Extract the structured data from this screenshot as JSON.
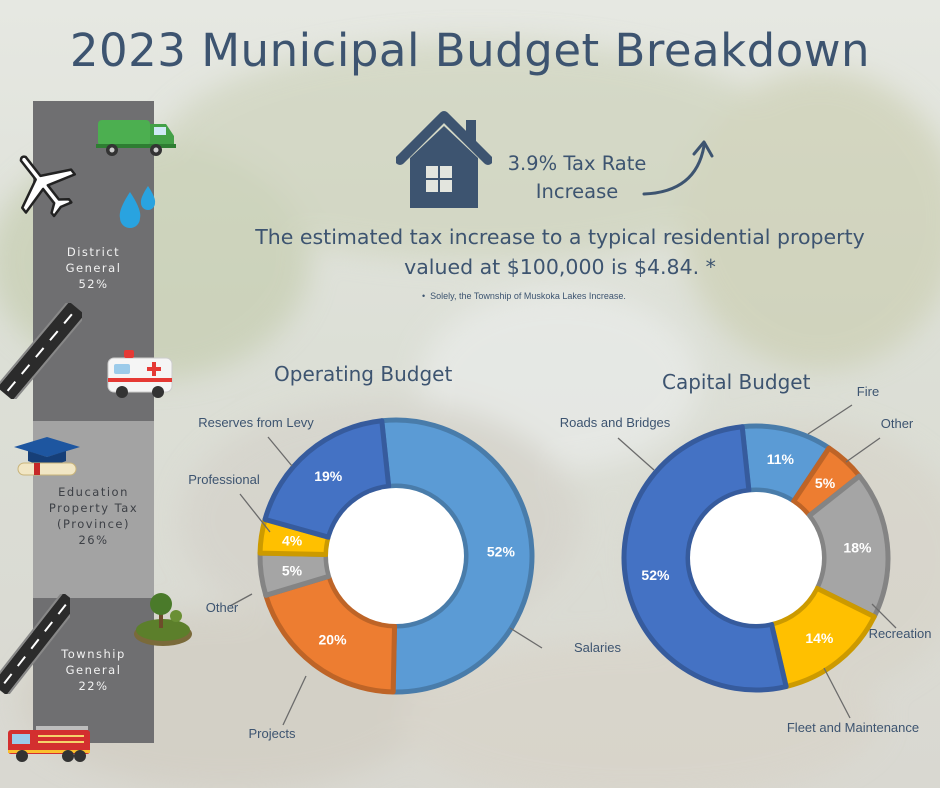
{
  "title": "2023 Municipal Budget Breakdown",
  "stacked_bar": [
    {
      "label": "District General",
      "percent": "52%"
    },
    {
      "label": "Education Property Tax (Province)",
      "percent": "26%"
    },
    {
      "label": "Township General",
      "percent": "22%"
    }
  ],
  "tax": {
    "line1": "3.9% Tax Rate",
    "line2": "Increase",
    "estimate": "The estimated tax increase to a typical residential property valued at $100,000 is $4.84. *",
    "footnote": "Solely, the Township of Muskoka Lakes Increase."
  },
  "chart_data": [
    {
      "type": "pie",
      "title": "Operating Budget",
      "categories": [
        "Salaries",
        "Projects",
        "Other",
        "Professional",
        "Reserves from Levy"
      ],
      "values": [
        52,
        20,
        5,
        4,
        19
      ],
      "colors": [
        "#5b9bd5",
        "#ed7d31",
        "#a5a5a5",
        "#ffc000",
        "#4472c4"
      ]
    },
    {
      "type": "pie",
      "title": "Capital Budget",
      "categories": [
        "Fire",
        "Other",
        "Recreation",
        "Fleet and Maintenance",
        "Roads and Bridges"
      ],
      "values": [
        11,
        5,
        18,
        14,
        52
      ],
      "colors": [
        "#5b9bd5",
        "#ed7d31",
        "#a5a5a5",
        "#ffc000",
        "#4472c4"
      ]
    }
  ]
}
